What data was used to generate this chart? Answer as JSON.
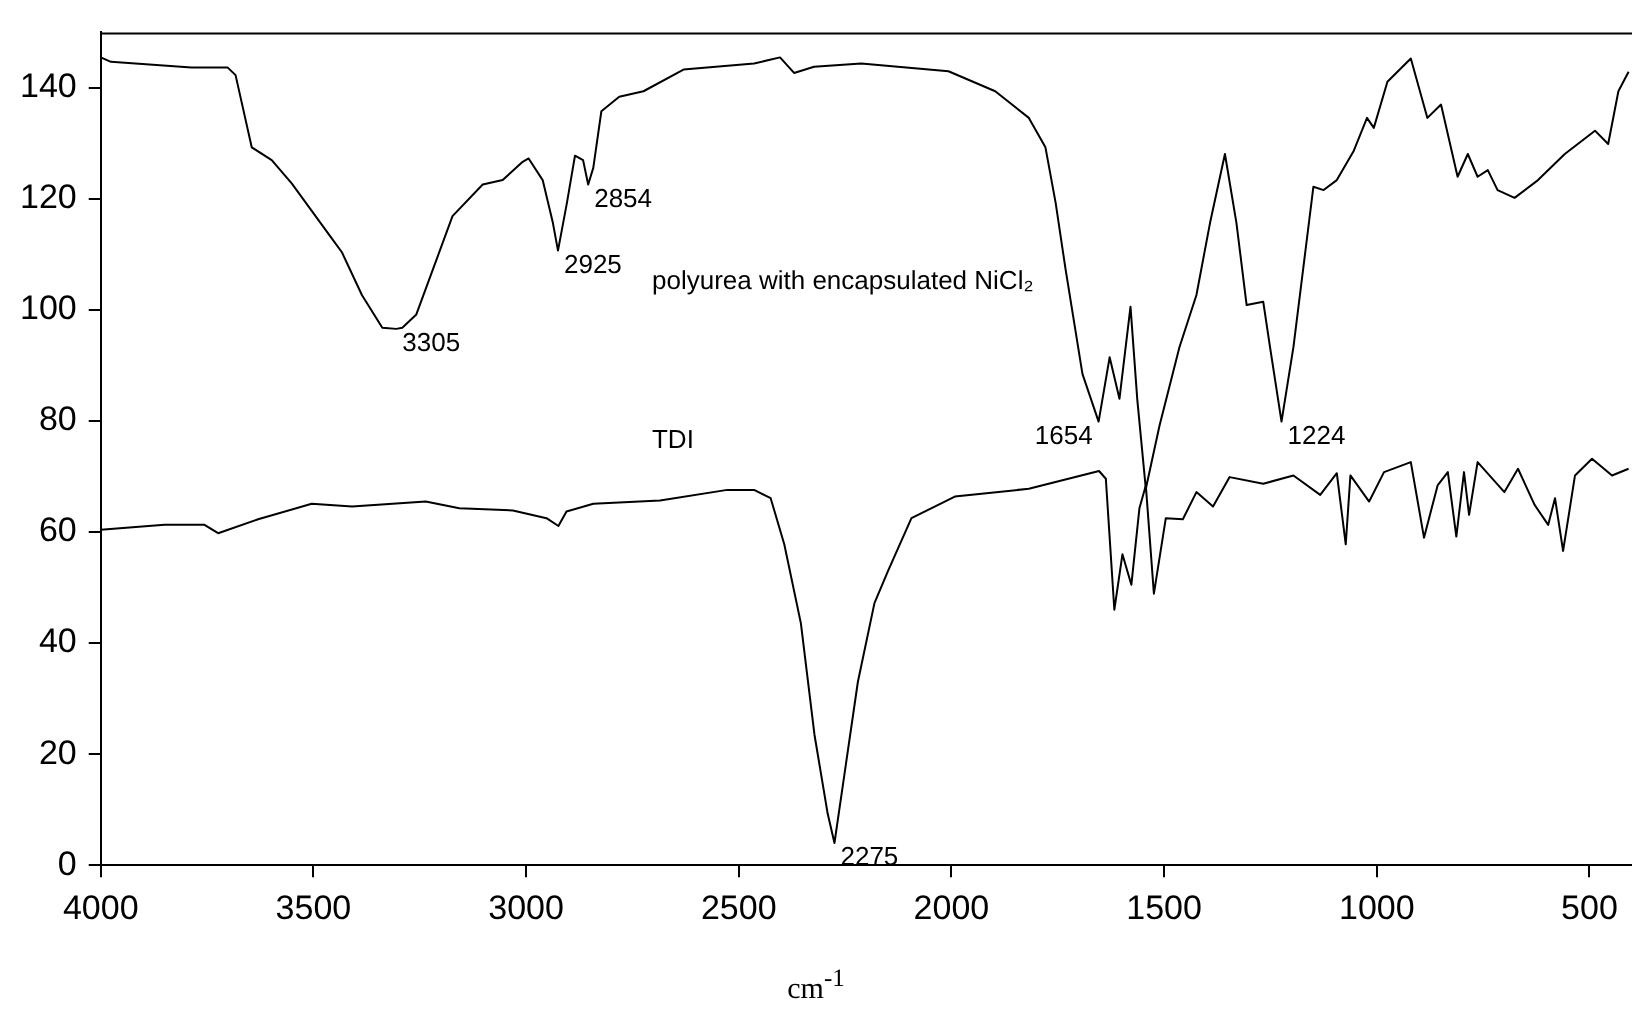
{
  "chart_data": {
    "type": "line",
    "xlabel": "cm$^{-1}$",
    "xlim": [
      4000,
      400
    ],
    "xticks": [
      4000,
      3500,
      3000,
      2500,
      2000,
      1500,
      1000,
      500
    ],
    "ylim": [
      0,
      150
    ],
    "yticks": [
      0,
      20,
      40,
      60,
      80,
      100,
      120,
      140
    ],
    "grid": false,
    "series": [
      {
        "name": "polyurea with encapsulated NiCl₂",
        "color": "#000000",
        "x": [
          4000,
          3976,
          3787,
          3702,
          3683,
          3645,
          3598,
          3551,
          3456,
          3433,
          3386,
          3338,
          3305,
          3291,
          3258,
          3173,
          3102,
          3055,
          3008,
          2994,
          2961,
          2937,
          2925,
          2904,
          2885,
          2866,
          2854,
          2842,
          2823,
          2781,
          2724,
          2630,
          2464,
          2403,
          2370,
          2323,
          2212,
          2007,
          1897,
          1818,
          1779,
          1755,
          1732,
          1692,
          1654,
          1628,
          1605,
          1579,
          1563,
          1543,
          1511,
          1464,
          1424,
          1392,
          1357,
          1330,
          1306,
          1267,
          1251,
          1224,
          1196,
          1149,
          1125,
          1094,
          1054,
          1023,
          1007,
          975,
          920,
          881,
          849,
          810,
          786,
          763,
          739,
          716,
          676,
          621,
          558,
          487,
          456,
          432,
          408
        ],
        "values": [
          145.5,
          144.7,
          143.7,
          143.7,
          142.3,
          129.3,
          127,
          122.8,
          112.8,
          110.4,
          102.7,
          96.8,
          96.6,
          96.8,
          99.2,
          116.9,
          122.6,
          123.4,
          126.7,
          127.3,
          123.4,
          115.7,
          110.7,
          119.3,
          127.8,
          127,
          122.6,
          125.6,
          135.8,
          138.4,
          139.4,
          143.3,
          144.4,
          145.5,
          142.7,
          143.8,
          144.4,
          143,
          139.4,
          134.6,
          129.3,
          119.3,
          107.5,
          88.5,
          79.9,
          91.5,
          84,
          100.6,
          83.8,
          67.8,
          79.1,
          93.3,
          102.7,
          115.7,
          128.1,
          115.7,
          100.9,
          101.5,
          93.3,
          79.9,
          93.3,
          122.2,
          121.6,
          123.4,
          128.7,
          134.6,
          132.8,
          141.1,
          145.3,
          134.6,
          137,
          124,
          128.1,
          124,
          125.2,
          121.6,
          120.2,
          123.4,
          128.1,
          132.3,
          129.9,
          139.4,
          142.9
        ]
      },
      {
        "name": "TDI",
        "color": "#000000",
        "x": [
          4000,
          3850,
          3756,
          3724,
          3630,
          3504,
          3409,
          3236,
          3157,
          3031,
          2952,
          2924,
          2905,
          2842,
          2685,
          2527,
          2464,
          2425,
          2393,
          2354,
          2322,
          2291,
          2275,
          2220,
          2181,
          2149,
          2094,
          1992,
          1818,
          1653,
          1637,
          1617,
          1598,
          1577,
          1558,
          1543,
          1524,
          1496,
          1456,
          1424,
          1385,
          1346,
          1267,
          1196,
          1133,
          1094,
          1073,
          1062,
          1018,
          983,
          920,
          889,
          857,
          833,
          813,
          795,
          783,
          763,
          700,
          668,
          629,
          597,
          581,
          562,
          534,
          494,
          447,
          408
        ],
        "values": [
          60.4,
          61.3,
          61.3,
          59.8,
          62.3,
          65.1,
          64.6,
          65.5,
          64.3,
          63.9,
          62.5,
          61.1,
          63.7,
          65.1,
          65.7,
          67.6,
          67.6,
          66.1,
          57.8,
          43.6,
          23.5,
          9.3,
          4,
          33,
          47.2,
          53,
          62.5,
          66.4,
          67.8,
          71,
          69.6,
          46,
          56,
          50.5,
          64.3,
          68.4,
          48.9,
          62.5,
          62.3,
          67.2,
          64.6,
          69.9,
          68.7,
          70.2,
          66.7,
          70.6,
          57.8,
          70.2,
          65.5,
          70.8,
          72.6,
          59,
          68.4,
          70.8,
          59.2,
          70.8,
          63.1,
          72.6,
          67.2,
          71.4,
          64.9,
          61.3,
          66.1,
          56.6,
          70.2,
          73.2,
          70.2,
          71.4
        ]
      }
    ],
    "annotations": [
      {
        "text": "3305",
        "x": 3305,
        "y": 96.6
      },
      {
        "text": "2925",
        "x": 2925,
        "y": 110.7
      },
      {
        "text": "2854",
        "x": 2854,
        "y": 122.6
      },
      {
        "text": "1654",
        "x": 1654,
        "y": 79.9
      },
      {
        "text": "1224",
        "x": 1224,
        "y": 79.9
      },
      {
        "text": "2275",
        "x": 2275,
        "y": 4
      }
    ]
  }
}
